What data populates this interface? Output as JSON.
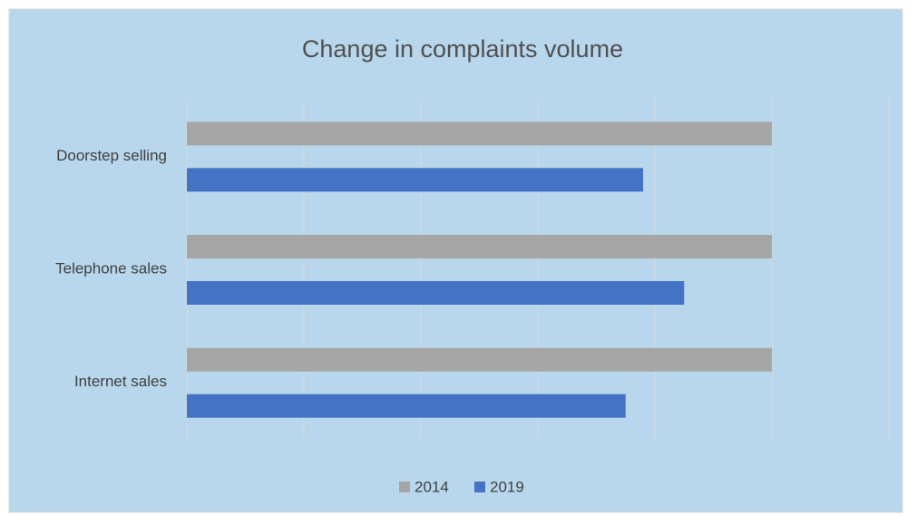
{
  "chart_data": {
    "type": "bar",
    "orientation": "horizontal",
    "title": "Change in complaints volume",
    "categories": [
      "Doorstep selling",
      "Telephone sales",
      "Internet sales"
    ],
    "series": [
      {
        "name": "2014",
        "color": "#a5a5a5",
        "values": [
          5,
          5,
          5
        ]
      },
      {
        "name": "2019",
        "color": "#4472c4",
        "values": [
          3.9,
          4.25,
          3.75
        ]
      }
    ],
    "xlim": [
      0,
      6
    ],
    "xticks": [
      0,
      1,
      2,
      3,
      4,
      5,
      6
    ],
    "grid": true,
    "legend": "bottom"
  }
}
